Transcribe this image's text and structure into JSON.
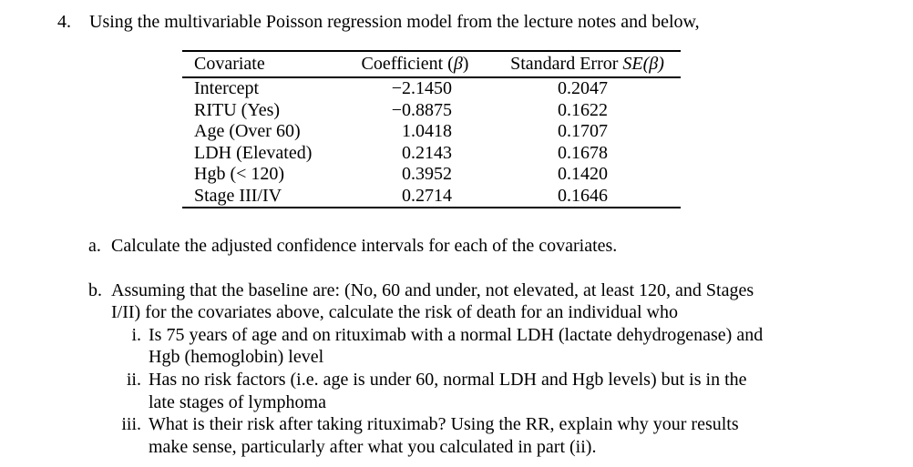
{
  "document": {
    "question_number": "4.",
    "question_text": "Using the multivariable Poisson regression model from the lecture notes and below,"
  },
  "table": {
    "headers": {
      "covariate": "Covariate",
      "coefficient": {
        "prefix": "Coefficient (",
        "symbol": "β",
        "suffix": ")"
      },
      "standard_error": {
        "prefix": "Standard Error ",
        "symbol": "SE(β)"
      }
    },
    "rows": [
      {
        "covariate": "Intercept",
        "coefficient": "−2.1450",
        "se": "0.2047"
      },
      {
        "covariate": "RITU (Yes)",
        "coefficient": "−0.8875",
        "se": "0.1622"
      },
      {
        "covariate": "Age (Over 60)",
        "coefficient": "1.0418",
        "se": "0.1707"
      },
      {
        "covariate": "LDH (Elevated)",
        "coefficient": "0.2143",
        "se": "0.1678"
      },
      {
        "covariate": "Hgb (< 120)",
        "coefficient": "0.3952",
        "se": "0.1420"
      },
      {
        "covariate": "Stage III/IV",
        "coefficient": "0.2714",
        "se": "0.1646"
      }
    ]
  },
  "sub_questions": {
    "a": {
      "label": "a.",
      "text": "Calculate the adjusted confidence intervals for each of the covariates."
    },
    "b": {
      "label": "b.",
      "text": "Assuming that the baseline are: (No, 60 and under, not elevated, at least 120, and Stages\nI/II) for the covariates above, calculate the risk of death for an individual who",
      "items": [
        {
          "label": "i.",
          "text": "Is 75 years of age and on rituximab with a normal LDH (lactate dehydrogenase) and\nHgb (hemoglobin) level"
        },
        {
          "label": "ii.",
          "text": "Has no risk factors (i.e. age is under 60, normal LDH and Hgb levels) but is in the\nlate stages of lymphoma"
        },
        {
          "label": "iii.",
          "text": "What is their risk after taking rituximab? Using the RR, explain why your results\nmake sense, particularly after what you calculated in part (ii)."
        }
      ]
    }
  }
}
